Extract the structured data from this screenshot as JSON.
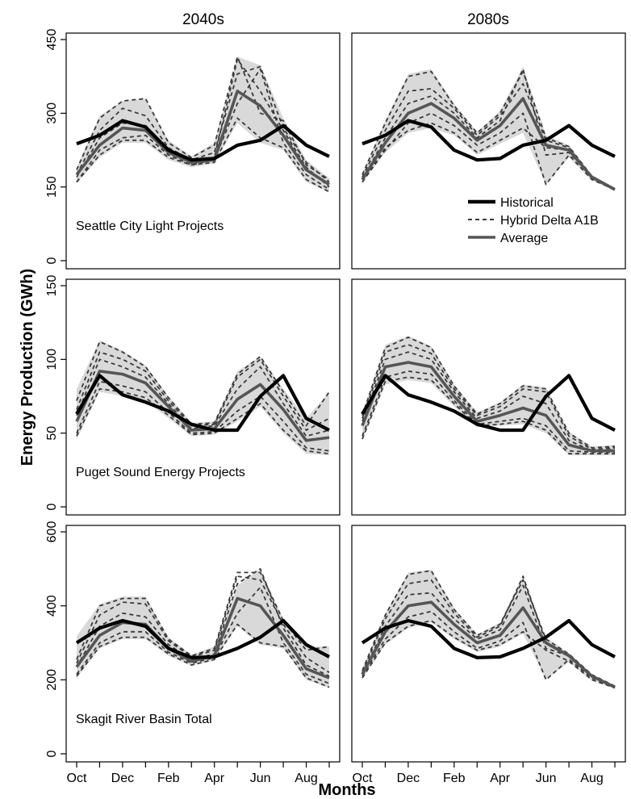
{
  "figure": {
    "column_titles": [
      "2040s",
      "2080s"
    ],
    "xlabel": "Months",
    "ylabel": "Energy Production (GWh)",
    "x_tick_labels": [
      "Oct",
      "Dec",
      "Feb",
      "Apr",
      "Jun",
      "Aug"
    ],
    "legend": {
      "placement": "top-right panel, lower right",
      "items": [
        {
          "name": "Historical",
          "style": "thick-solid-black"
        },
        {
          "name": "Hybrid Delta A1B",
          "style": "dashed-dark-gray"
        },
        {
          "name": "Average",
          "style": "solid-gray"
        }
      ]
    },
    "colors": {
      "historical": "#000000",
      "hybrid": "#3a3a3a",
      "average": "#555555",
      "envelope": "#d9d9d9"
    }
  },
  "chart_data": [
    {
      "type": "line",
      "row": 0,
      "col": 0,
      "annotation": "Seattle City Light Projects",
      "x": [
        "Oct",
        "Nov",
        "Dec",
        "Jan",
        "Feb",
        "Mar",
        "Apr",
        "May",
        "Jun",
        "Jul",
        "Aug",
        "Sep"
      ],
      "ylim": [
        0,
        450
      ],
      "yticks": [
        0,
        150,
        300,
        450
      ],
      "show_y_ticks": true,
      "historical": [
        238,
        255,
        285,
        272,
        225,
        205,
        208,
        235,
        245,
        275,
        235,
        212
      ],
      "average": [
        175,
        235,
        270,
        265,
        220,
        200,
        205,
        345,
        315,
        255,
        185,
        155
      ],
      "hybrid": [
        [
          160,
          225,
          250,
          255,
          215,
          195,
          205,
          320,
          390,
          240,
          175,
          145
        ],
        [
          170,
          250,
          280,
          275,
          225,
          200,
          210,
          410,
          345,
          265,
          190,
          150
        ],
        [
          160,
          215,
          245,
          245,
          210,
          195,
          200,
          290,
          250,
          230,
          165,
          140
        ],
        [
          175,
          265,
          310,
          295,
          230,
          205,
          220,
          380,
          395,
          270,
          200,
          160
        ],
        [
          185,
          290,
          325,
          330,
          240,
          210,
          235,
          415,
          300,
          285,
          195,
          165
        ]
      ],
      "envelope_low": [
        158,
        210,
        240,
        240,
        205,
        190,
        198,
        280,
        240,
        225,
        160,
        140
      ],
      "envelope_high": [
        190,
        295,
        325,
        330,
        245,
        212,
        240,
        415,
        398,
        290,
        205,
        168
      ]
    },
    {
      "type": "line",
      "row": 0,
      "col": 1,
      "annotation": "",
      "x": [
        "Oct",
        "Nov",
        "Dec",
        "Jan",
        "Feb",
        "Mar",
        "Apr",
        "May",
        "Jun",
        "Jul",
        "Aug",
        "Sep"
      ],
      "ylim": [
        0,
        450
      ],
      "yticks": [
        0,
        150,
        300,
        450
      ],
      "show_y_ticks": false,
      "historical": [
        238,
        255,
        285,
        272,
        225,
        205,
        208,
        235,
        245,
        275,
        235,
        212
      ],
      "average": [
        165,
        240,
        300,
        320,
        290,
        245,
        275,
        330,
        235,
        225,
        170,
        145
      ],
      "hybrid": [
        [
          160,
          225,
          280,
          300,
          275,
          235,
          260,
          300,
          155,
          215,
          165,
          145
        ],
        [
          165,
          250,
          320,
          335,
          300,
          250,
          285,
          390,
          215,
          220,
          170,
          145
        ],
        [
          160,
          230,
          265,
          280,
          260,
          220,
          245,
          270,
          230,
          225,
          168,
          143
        ],
        [
          170,
          265,
          345,
          350,
          310,
          255,
          295,
          360,
          245,
          230,
          170,
          145
        ],
        [
          175,
          280,
          375,
          385,
          315,
          260,
          300,
          385,
          250,
          232,
          172,
          146
        ]
      ],
      "envelope_low": [
        158,
        220,
        260,
        270,
        255,
        215,
        238,
        260,
        155,
        210,
        163,
        142
      ],
      "envelope_high": [
        178,
        285,
        380,
        390,
        320,
        262,
        305,
        395,
        255,
        235,
        175,
        148
      ]
    },
    {
      "type": "line",
      "row": 1,
      "col": 0,
      "annotation": "Puget Sound Energy Projects",
      "x": [
        "Oct",
        "Nov",
        "Dec",
        "Jan",
        "Feb",
        "Mar",
        "Apr",
        "May",
        "Jun",
        "Jul",
        "Aug",
        "Sep"
      ],
      "ylim": [
        0,
        150
      ],
      "yticks": [
        0,
        50,
        100,
        150
      ],
      "show_y_ticks": true,
      "historical": [
        63,
        89,
        76,
        71,
        65,
        56,
        52,
        52,
        75,
        89,
        60,
        52
      ],
      "average": [
        58,
        92,
        90,
        84,
        68,
        52,
        53,
        73,
        83,
        66,
        45,
        47
      ],
      "hybrid": [
        [
          50,
          85,
          82,
          78,
          64,
          50,
          51,
          65,
          75,
          58,
          40,
          38
        ],
        [
          62,
          100,
          95,
          88,
          70,
          53,
          55,
          80,
          95,
          70,
          48,
          52
        ],
        [
          48,
          80,
          78,
          74,
          62,
          49,
          50,
          60,
          70,
          52,
          38,
          36
        ],
        [
          66,
          105,
          100,
          92,
          72,
          55,
          56,
          88,
          100,
          75,
          52,
          60
        ],
        [
          72,
          112,
          105,
          95,
          74,
          56,
          57,
          90,
          102,
          78,
          55,
          78
        ]
      ],
      "envelope_low": [
        46,
        78,
        75,
        72,
        60,
        48,
        49,
        58,
        68,
        50,
        36,
        35
      ],
      "envelope_high": [
        80,
        113,
        106,
        96,
        75,
        57,
        58,
        92,
        102,
        80,
        60,
        78
      ]
    },
    {
      "type": "line",
      "row": 1,
      "col": 1,
      "annotation": "",
      "x": [
        "Oct",
        "Nov",
        "Dec",
        "Jan",
        "Feb",
        "Mar",
        "Apr",
        "May",
        "Jun",
        "Jul",
        "Aug",
        "Sep"
      ],
      "ylim": [
        0,
        150
      ],
      "yticks": [
        0,
        50,
        100,
        150
      ],
      "show_y_ticks": false,
      "historical": [
        63,
        89,
        76,
        71,
        65,
        56,
        52,
        52,
        75,
        89,
        60,
        52
      ],
      "average": [
        55,
        95,
        98,
        95,
        75,
        58,
        62,
        67,
        62,
        42,
        38,
        38
      ],
      "hybrid": [
        [
          48,
          88,
          92,
          90,
          72,
          56,
          58,
          60,
          55,
          38,
          37,
          37
        ],
        [
          58,
          100,
          105,
          100,
          78,
          60,
          65,
          75,
          70,
          45,
          38,
          39
        ],
        [
          46,
          85,
          88,
          86,
          70,
          55,
          56,
          58,
          52,
          36,
          36,
          36
        ],
        [
          60,
          105,
          110,
          104,
          80,
          62,
          68,
          80,
          78,
          48,
          39,
          40
        ],
        [
          62,
          108,
          115,
          108,
          82,
          63,
          70,
          82,
          80,
          50,
          40,
          41
        ]
      ],
      "envelope_low": [
        45,
        83,
        86,
        84,
        68,
        54,
        55,
        56,
        50,
        35,
        35,
        35
      ],
      "envelope_high": [
        64,
        110,
        116,
        109,
        83,
        64,
        71,
        83,
        81,
        51,
        41,
        42
      ]
    },
    {
      "type": "line",
      "row": 2,
      "col": 0,
      "annotation": "Skagit River Basin Total",
      "x": [
        "Oct",
        "Nov",
        "Dec",
        "Jan",
        "Feb",
        "Mar",
        "Apr",
        "May",
        "Jun",
        "Jul",
        "Aug",
        "Sep"
      ],
      "ylim": [
        0,
        600
      ],
      "yticks": [
        0,
        200,
        400,
        600
      ],
      "show_y_ticks": true,
      "historical": [
        300,
        340,
        360,
        345,
        285,
        260,
        262,
        285,
        315,
        360,
        295,
        262
      ],
      "average": [
        235,
        320,
        355,
        350,
        285,
        250,
        265,
        420,
        400,
        320,
        230,
        205
      ],
      "hybrid": [
        [
          215,
          300,
          330,
          330,
          275,
          245,
          260,
          380,
          450,
          300,
          215,
          190
        ],
        [
          235,
          345,
          380,
          370,
          295,
          255,
          270,
          460,
          500,
          340,
          240,
          210
        ],
        [
          210,
          290,
          315,
          315,
          270,
          240,
          255,
          350,
          300,
          290,
          205,
          180
        ],
        [
          245,
          375,
          410,
          405,
          305,
          262,
          280,
          480,
          470,
          350,
          260,
          220
        ],
        [
          255,
          400,
          420,
          420,
          310,
          265,
          285,
          490,
          490,
          360,
          280,
          290
        ]
      ],
      "envelope_low": [
        205,
        285,
        310,
        310,
        265,
        238,
        252,
        345,
        295,
        285,
        200,
        178
      ],
      "envelope_high": [
        318,
        405,
        425,
        425,
        315,
        268,
        290,
        455,
        500,
        365,
        290,
        290
      ]
    },
    {
      "type": "line",
      "row": 2,
      "col": 1,
      "annotation": "",
      "x": [
        "Oct",
        "Nov",
        "Dec",
        "Jan",
        "Feb",
        "Mar",
        "Apr",
        "May",
        "Jun",
        "Jul",
        "Aug",
        "Sep"
      ],
      "ylim": [
        0,
        600
      ],
      "yticks": [
        0,
        200,
        400,
        600
      ],
      "show_y_ticks": false,
      "historical": [
        300,
        340,
        360,
        345,
        285,
        260,
        262,
        285,
        315,
        360,
        295,
        262
      ],
      "average": [
        215,
        330,
        400,
        410,
        350,
        300,
        320,
        395,
        300,
        265,
        210,
        180
      ],
      "hybrid": [
        [
          210,
          310,
          370,
          385,
          330,
          285,
          305,
          355,
          200,
          255,
          205,
          180
        ],
        [
          215,
          345,
          430,
          435,
          365,
          310,
          335,
          455,
          285,
          265,
          210,
          180
        ],
        [
          205,
          300,
          345,
          360,
          315,
          280,
          295,
          330,
          280,
          250,
          200,
          178
        ],
        [
          220,
          365,
          460,
          470,
          380,
          315,
          345,
          480,
          300,
          268,
          212,
          182
        ],
        [
          225,
          375,
          485,
          495,
          390,
          320,
          350,
          470,
          310,
          270,
          214,
          183
        ]
      ],
      "envelope_low": [
        203,
        295,
        340,
        355,
        310,
        275,
        290,
        325,
        200,
        248,
        198,
        176
      ],
      "envelope_high": [
        228,
        380,
        490,
        498,
        395,
        322,
        355,
        482,
        315,
        272,
        215,
        185
      ]
    }
  ]
}
